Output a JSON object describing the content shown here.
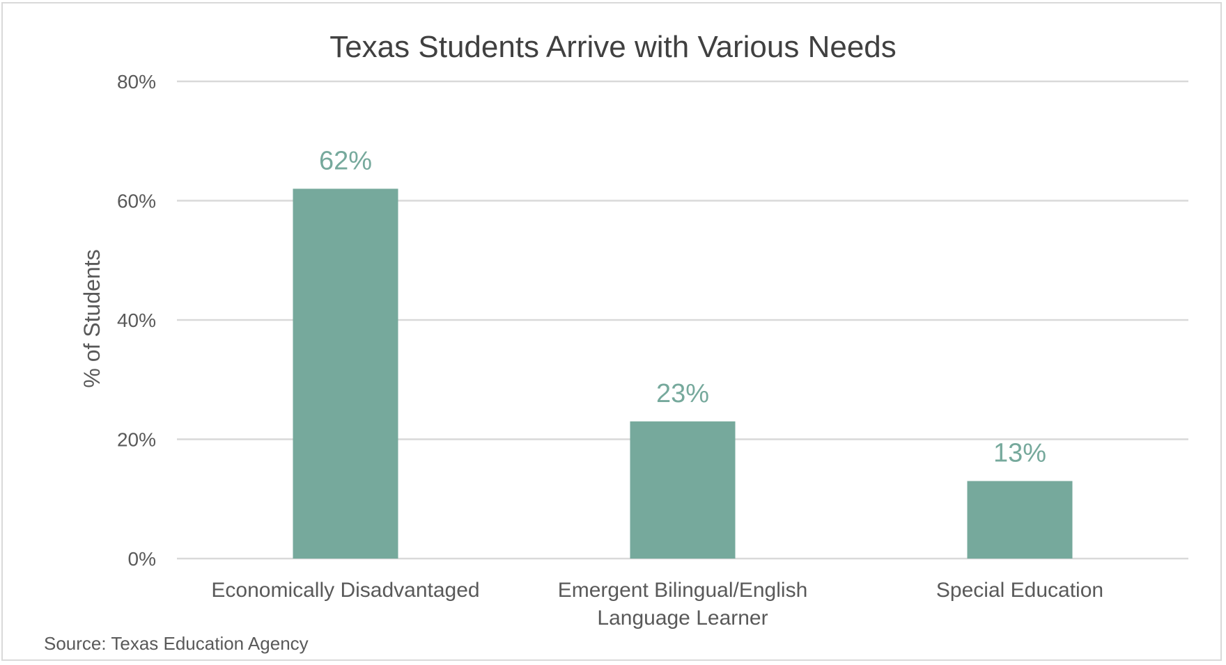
{
  "chart_data": {
    "type": "bar",
    "title": "Texas Students Arrive with Various Needs",
    "ylabel": "% of Students",
    "xlabel": "",
    "categories": [
      [
        "Economically Disadvantaged"
      ],
      [
        "Emergent Bilingual/English",
        "Language Learner"
      ],
      [
        "Special Education"
      ]
    ],
    "values": [
      62,
      23,
      13
    ],
    "data_labels": [
      "62%",
      "23%",
      "13%"
    ],
    "ylim": [
      0,
      80
    ],
    "yticks": [
      {
        "value": 0,
        "label": "0%"
      },
      {
        "value": 20,
        "label": "20%"
      },
      {
        "value": 40,
        "label": "40%"
      },
      {
        "value": 60,
        "label": "60%"
      },
      {
        "value": 80,
        "label": "80%"
      }
    ],
    "grid": true,
    "legend": "none",
    "colors": {
      "bar": "#76a99c",
      "data_label": "#76a99c",
      "grid": "#d9d9d9",
      "title": "#404040",
      "axis_text": "#595959"
    }
  },
  "source": "Source: Texas Education Agency"
}
